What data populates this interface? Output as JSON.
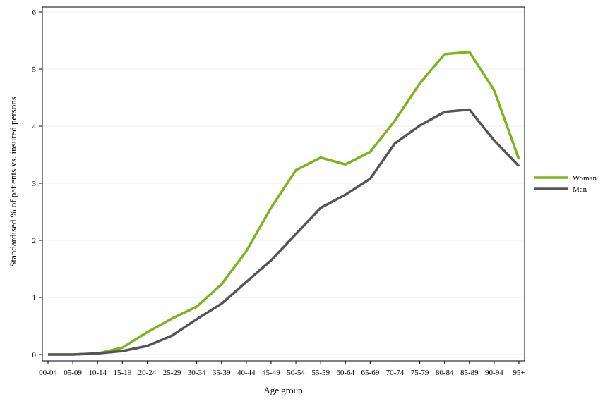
{
  "chart_data": {
    "type": "line",
    "title": "",
    "xlabel": "Age group",
    "ylabel": "Standardised % of patients vs. insured persons",
    "categories": [
      "00-04",
      "05-09",
      "10-14",
      "15-19",
      "20-24",
      "25-29",
      "30-34",
      "35-39",
      "40-44",
      "45-49",
      "50-54",
      "55-59",
      "60-64",
      "65-69",
      "70-74",
      "75-79",
      "80-84",
      "85-89",
      "90-94",
      "95+"
    ],
    "ylim": [
      0,
      6
    ],
    "yticks": [
      0,
      1,
      2,
      3,
      4,
      5,
      6
    ],
    "grid": true,
    "legend_position": "right",
    "series": [
      {
        "name": "Woman",
        "color": "#7ab51d",
        "values": [
          0.0,
          0.0,
          0.02,
          0.12,
          0.39,
          0.63,
          0.84,
          1.23,
          1.81,
          2.57,
          3.23,
          3.45,
          3.33,
          3.55,
          4.1,
          4.75,
          5.26,
          5.3,
          4.63,
          3.42
        ]
      },
      {
        "name": "Man",
        "color": "#555555",
        "values": [
          0.0,
          0.0,
          0.02,
          0.06,
          0.15,
          0.33,
          0.62,
          0.89,
          1.27,
          1.65,
          2.11,
          2.57,
          2.8,
          3.08,
          3.7,
          4.01,
          4.25,
          4.29,
          3.75,
          3.3
        ]
      }
    ]
  }
}
